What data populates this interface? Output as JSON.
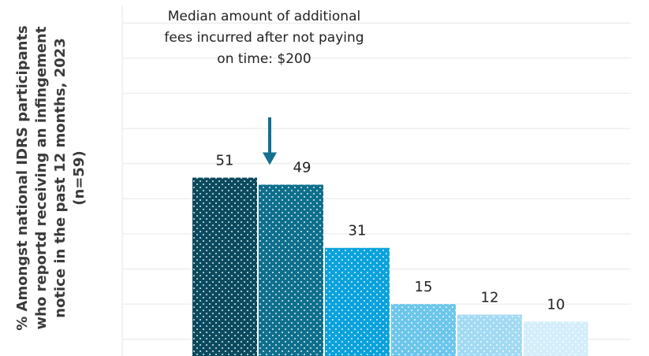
{
  "chart_data": {
    "type": "bar",
    "ylabel": "% Amongst national IDRS participants who reportd receiving an infingement notice in the past 12 months, 2023 (n=59)",
    "categories": [
      "",
      "",
      "",
      "",
      "",
      ""
    ],
    "values": [
      51,
      49,
      31,
      15,
      12,
      10
    ],
    "data_labels": [
      "51",
      "49",
      "31",
      "15",
      "12",
      "10"
    ],
    "bar_colors": [
      "#0b4a5e",
      "#0e6f8c",
      "#0aa2dc",
      "#6cc6ec",
      "#a3daf3",
      "#d3eefa"
    ],
    "ylim": [
      0,
      100
    ],
    "grid": true,
    "annotation": {
      "text": "Median amount of additional fees incurred after not paying on time: $200",
      "target_bar_index": 1
    }
  }
}
